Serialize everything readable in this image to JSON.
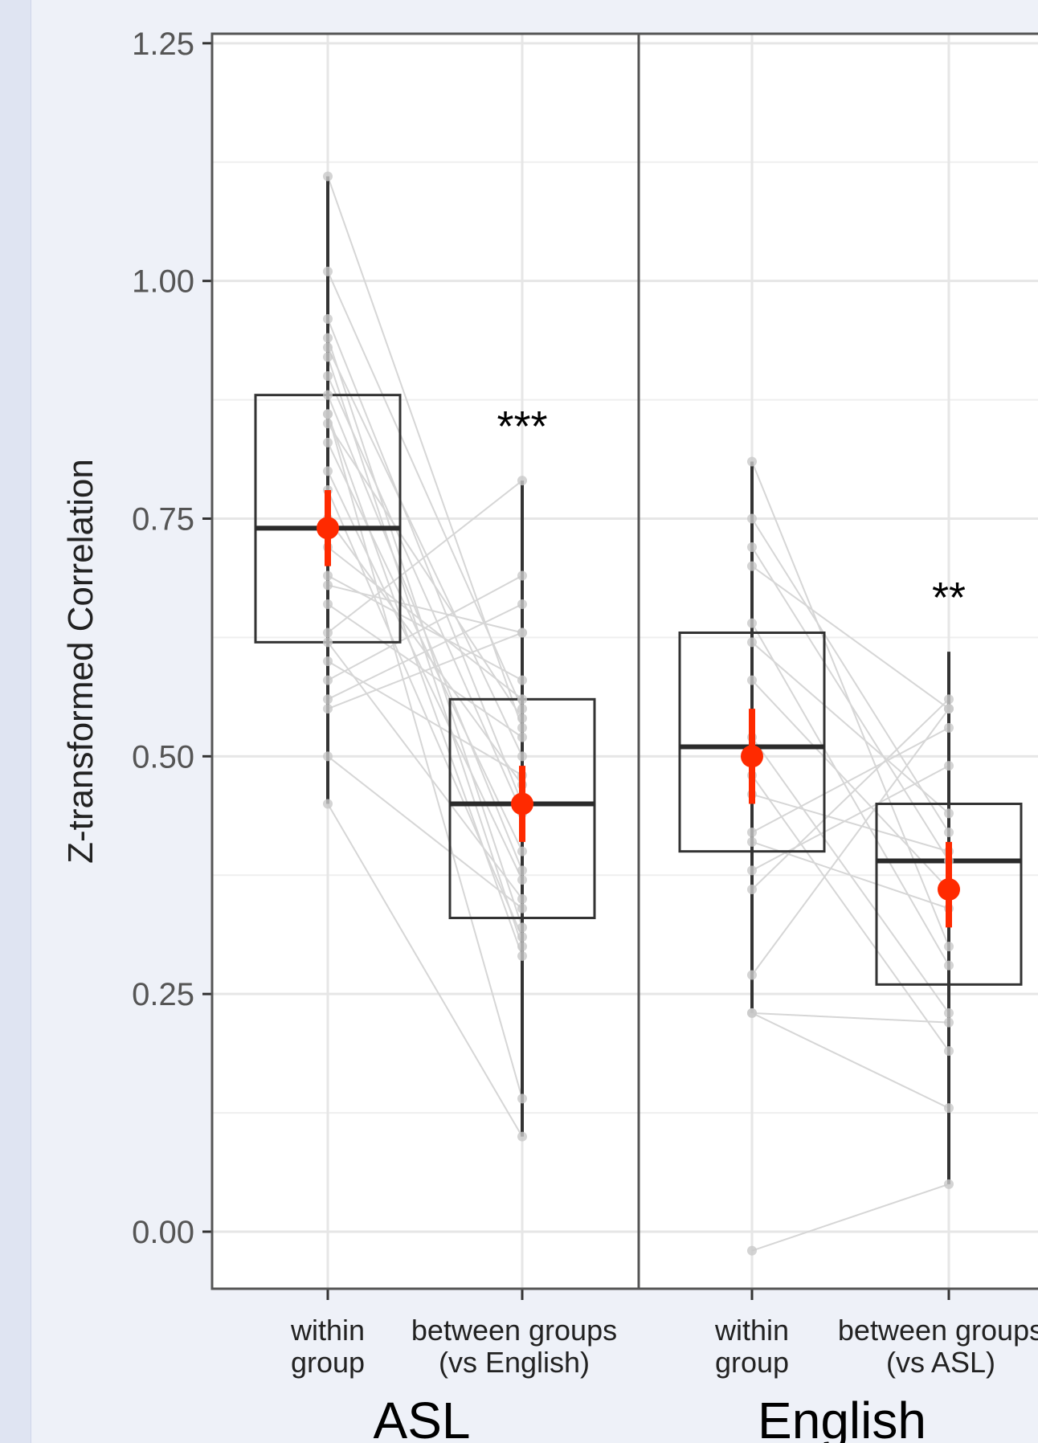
{
  "colors": {
    "background": "#eef1f8",
    "panel": "#ffffff",
    "grid": "#e6e6e6",
    "box": "#333333",
    "whisker": "#333333",
    "mean": "#ff2a00",
    "points": "#c9c9c9",
    "lines": "#d6d6d6"
  },
  "chart_data": {
    "type": "box",
    "ylabel": "Z-transformed Correlation",
    "ylim": [
      -0.06,
      1.26
    ],
    "yticks": [
      "0.00",
      "0.25",
      "0.50",
      "0.75",
      "1.00",
      "1.25"
    ],
    "ytick_values": [
      0.0,
      0.25,
      0.5,
      0.75,
      1.0,
      1.25
    ],
    "grid": true,
    "panels": [
      {
        "label": "ASL",
        "categories": [
          {
            "lines": [
              "within",
              "group"
            ],
            "min": 0.45,
            "q1": 0.62,
            "median": 0.74,
            "q3": 0.88,
            "max": 1.11,
            "mean": 0.74,
            "mean_ci": [
              0.7,
              0.78
            ]
          },
          {
            "lines": [
              "between groups",
              "(vs English)"
            ],
            "min": 0.1,
            "q1": 0.33,
            "median": 0.45,
            "q3": 0.56,
            "max": 0.79,
            "mean": 0.45,
            "mean_ci": [
              0.41,
              0.49
            ]
          }
        ],
        "significance": "***",
        "significance_y": 0.85,
        "pairs": [
          [
            1.11,
            0.53
          ],
          [
            1.01,
            0.55
          ],
          [
            0.96,
            0.45
          ],
          [
            0.94,
            0.32
          ],
          [
            0.93,
            0.5
          ],
          [
            0.92,
            0.3
          ],
          [
            0.9,
            0.44
          ],
          [
            0.88,
            0.38
          ],
          [
            0.86,
            0.29
          ],
          [
            0.85,
            0.54
          ],
          [
            0.83,
            0.4
          ],
          [
            0.8,
            0.37
          ],
          [
            0.78,
            0.31
          ],
          [
            0.75,
            0.47
          ],
          [
            0.72,
            0.56
          ],
          [
            0.69,
            0.58
          ],
          [
            0.68,
            0.63
          ],
          [
            0.66,
            0.52
          ],
          [
            0.63,
            0.79
          ],
          [
            0.62,
            0.35
          ],
          [
            0.58,
            0.69
          ],
          [
            0.56,
            0.66
          ],
          [
            0.55,
            0.63
          ],
          [
            0.5,
            0.34
          ],
          [
            0.45,
            0.1
          ],
          [
            0.86,
            0.14
          ],
          [
            0.6,
            0.48
          ]
        ]
      },
      {
        "label": "English",
        "categories": [
          {
            "lines": [
              "within",
              "group"
            ],
            "min": 0.23,
            "q1": 0.4,
            "median": 0.51,
            "q3": 0.63,
            "max": 0.81,
            "mean": 0.5,
            "mean_ci": [
              0.45,
              0.55
            ]
          },
          {
            "lines": [
              "between groups",
              "(vs ASL)"
            ],
            "min": 0.05,
            "q1": 0.26,
            "median": 0.39,
            "q3": 0.45,
            "max": 0.61,
            "mean": 0.36,
            "mean_ci": [
              0.32,
              0.41
            ]
          }
        ],
        "significance": "**",
        "significance_y": 0.67,
        "pairs": [
          [
            0.81,
            0.3
          ],
          [
            0.75,
            0.42
          ],
          [
            0.72,
            0.39
          ],
          [
            0.7,
            0.55
          ],
          [
            0.64,
            0.28
          ],
          [
            0.62,
            0.44
          ],
          [
            0.58,
            0.36
          ],
          [
            0.52,
            0.23
          ],
          [
            0.46,
            0.4
          ],
          [
            0.42,
            0.53
          ],
          [
            0.38,
            0.49
          ],
          [
            0.36,
            0.56
          ],
          [
            0.27,
            0.55
          ],
          [
            0.23,
            0.22
          ],
          [
            0.23,
            0.13
          ],
          [
            -0.02,
            0.05
          ],
          [
            0.41,
            0.34
          ],
          [
            0.48,
            0.19
          ]
        ]
      }
    ]
  }
}
